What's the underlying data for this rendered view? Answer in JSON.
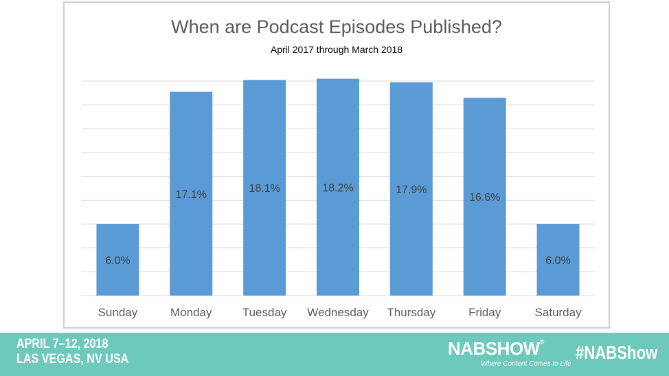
{
  "chart_data": {
    "type": "bar",
    "title": "When are Podcast Episodes Published?",
    "subtitle": "April 2017 through March 2018",
    "categories": [
      "Sunday",
      "Monday",
      "Tuesday",
      "Wednesday",
      "Thursday",
      "Friday",
      "Saturday"
    ],
    "values": [
      6.0,
      17.1,
      18.1,
      18.2,
      17.9,
      16.6,
      6.0
    ],
    "data_labels": [
      "6.0%",
      "17.1%",
      "18.1%",
      "18.2%",
      "17.9%",
      "16.6%",
      "6.0%"
    ],
    "ylim": [
      0,
      18
    ],
    "grid": true,
    "bar_color": "#5b9bd5",
    "gridline_color": "#d9d9d9"
  },
  "footer": {
    "dates_line1": "APRIL 7–12, 2018",
    "dates_line2": "LAS VEGAS, NV USA",
    "logo_text": "NABSHOW",
    "logo_tagline": "Where Content Comes to Life",
    "hashtag": "#NABShow",
    "background_color": "#6cc9bc"
  }
}
